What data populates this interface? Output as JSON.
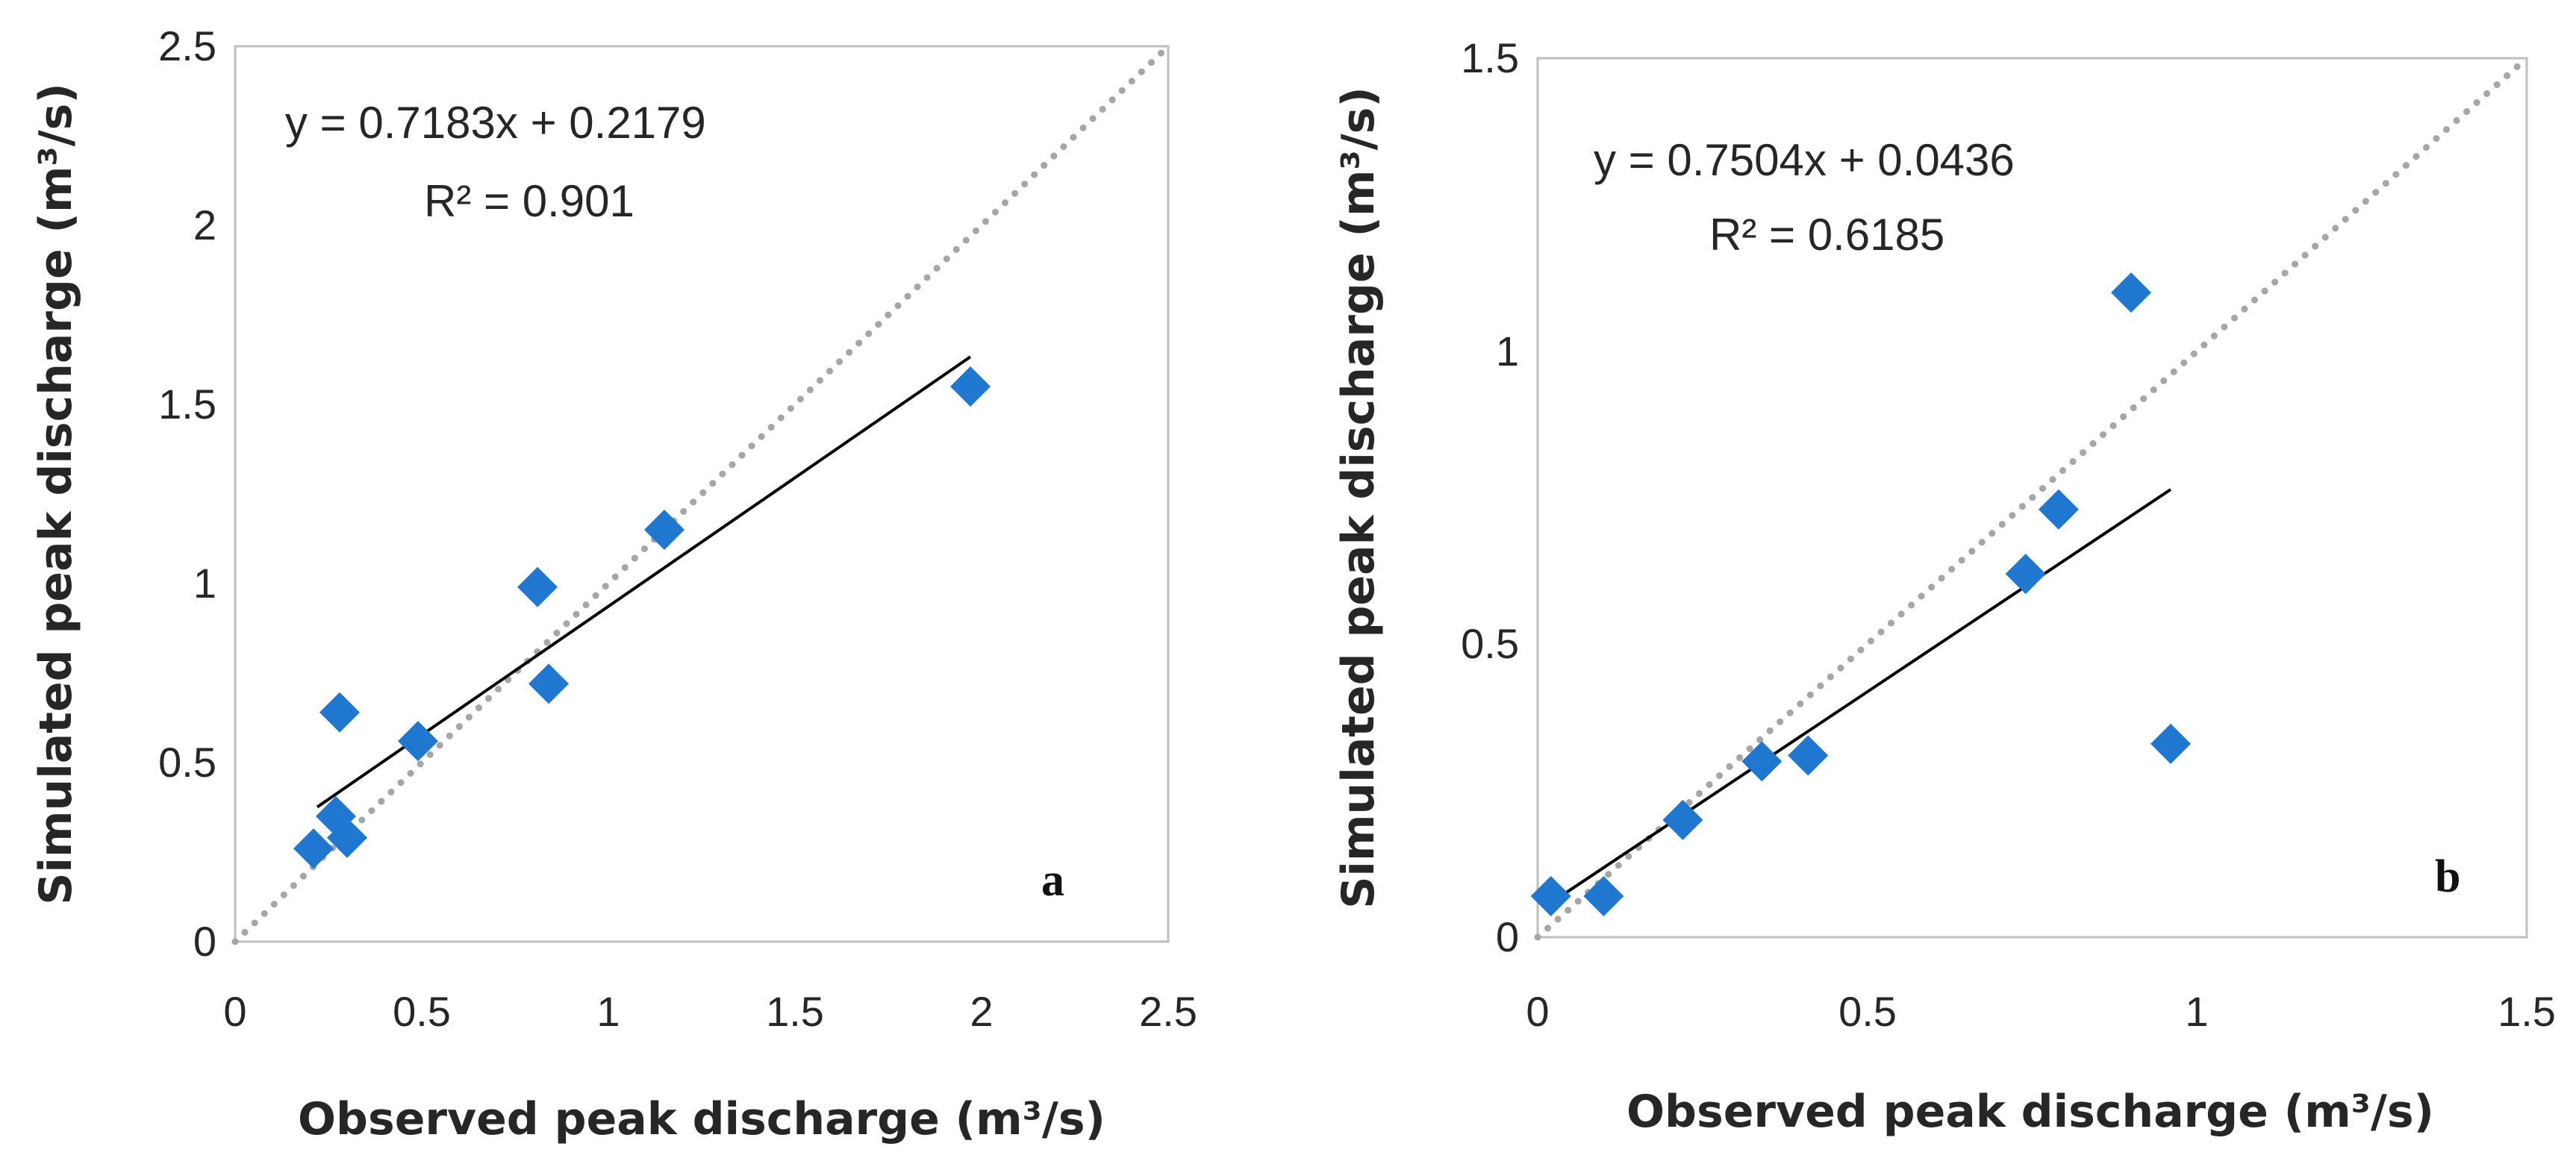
{
  "chart_data": [
    {
      "type": "scatter",
      "panel": "a",
      "xlabel": "Observed peak discharge (m³/s)",
      "ylabel": "Simulated peak discharge (m³/s)",
      "xlim": [
        0,
        2.5
      ],
      "ylim": [
        0,
        2.5
      ],
      "xticks": [
        "0",
        "0.5",
        "1",
        "1.5",
        "2",
        "2.5"
      ],
      "yticks": [
        "0",
        "0.5",
        "1",
        "1.5",
        "2",
        "2.5"
      ],
      "equation": "y = 0.7183x + 0.2179",
      "r2": "R² = 0.901",
      "trend": {
        "slope": 0.7183,
        "intercept": 0.2179,
        "x_range": [
          0.22,
          1.97
        ]
      },
      "identity_line": true,
      "marker_color": "#1f77d0",
      "points": [
        {
          "x": 0.21,
          "y": 0.26
        },
        {
          "x": 0.27,
          "y": 0.35
        },
        {
          "x": 0.3,
          "y": 0.29
        },
        {
          "x": 0.28,
          "y": 0.64
        },
        {
          "x": 0.49,
          "y": 0.56
        },
        {
          "x": 0.81,
          "y": 0.99
        },
        {
          "x": 0.84,
          "y": 0.72
        },
        {
          "x": 1.15,
          "y": 1.15
        },
        {
          "x": 1.97,
          "y": 1.55
        }
      ]
    },
    {
      "type": "scatter",
      "panel": "b",
      "xlabel": "Observed peak discharge (m³/s)",
      "ylabel": "Simulated peak discharge (m³/s)",
      "xlim": [
        0,
        1.5
      ],
      "ylim": [
        0,
        1.5
      ],
      "xticks": [
        "0",
        "0.5",
        "1",
        "1.5"
      ],
      "yticks": [
        "0",
        "0.5",
        "1",
        "1.5"
      ],
      "equation": "y = 0.7504x + 0.0436",
      "r2": "R² = 0.6185",
      "trend": {
        "slope": 0.7504,
        "intercept": 0.0436,
        "x_range": [
          0.02,
          0.96
        ]
      },
      "identity_line": true,
      "marker_color": "#1f77d0",
      "points": [
        {
          "x": 0.02,
          "y": 0.07
        },
        {
          "x": 0.1,
          "y": 0.07
        },
        {
          "x": 0.22,
          "y": 0.2
        },
        {
          "x": 0.34,
          "y": 0.3
        },
        {
          "x": 0.41,
          "y": 0.31
        },
        {
          "x": 0.74,
          "y": 0.62
        },
        {
          "x": 0.79,
          "y": 0.73
        },
        {
          "x": 0.9,
          "y": 1.1
        },
        {
          "x": 0.96,
          "y": 0.33
        }
      ]
    }
  ]
}
